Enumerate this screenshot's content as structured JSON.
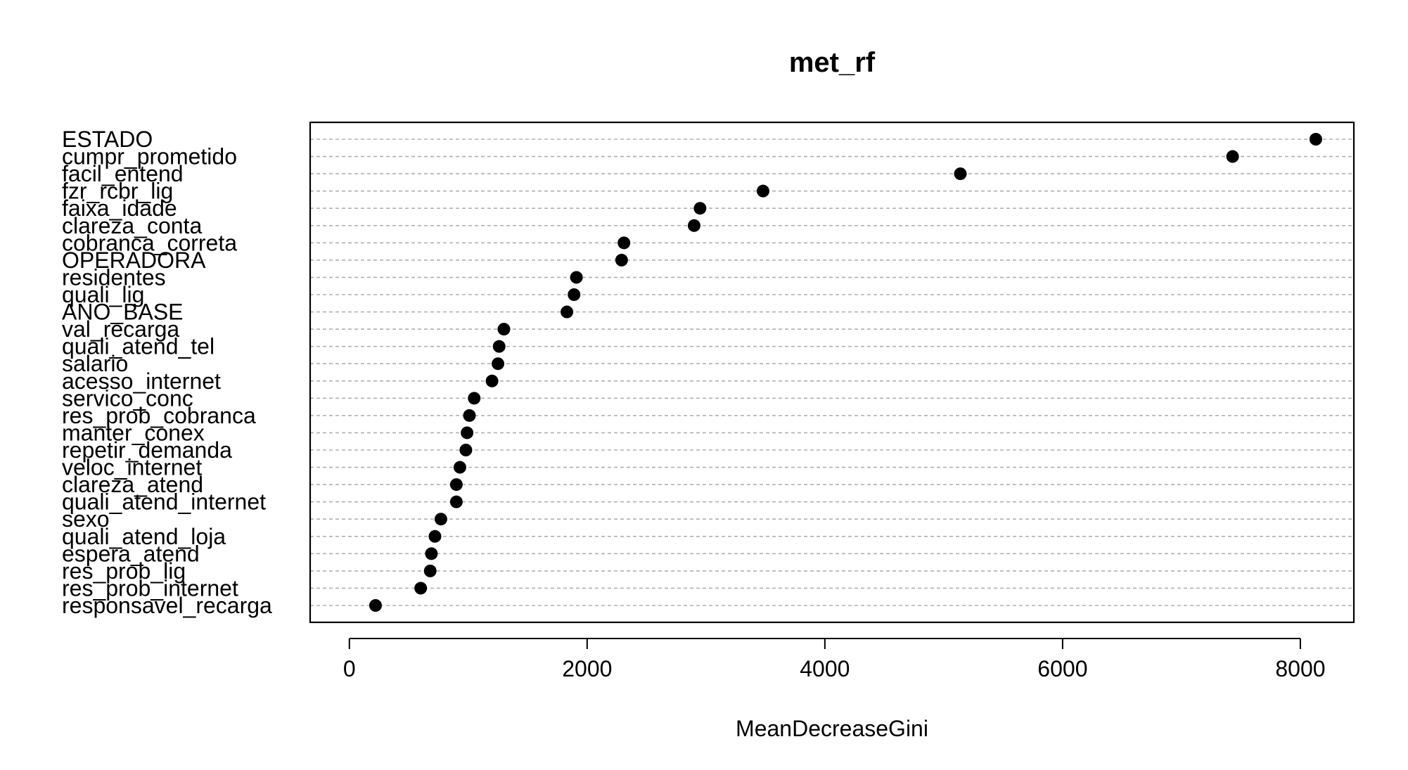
{
  "chart_data": {
    "type": "scatter",
    "title": "met_rf",
    "xlabel": "MeanDecreaseGini",
    "ylabel": "",
    "xlim": [
      -330,
      8450
    ],
    "xticks": [
      0,
      2000,
      4000,
      6000,
      8000
    ],
    "xtick_labels": [
      "0",
      "2000",
      "4000",
      "6000",
      "8000"
    ],
    "grid": "horizontal-dashed",
    "legend": "none",
    "point_color": "#000000",
    "gridline_color": "#b0b0b0",
    "categories": [
      "ESTADO",
      "cumpr_prometido",
      "facil_entend",
      "fzr_rcbr_lig",
      "faixa_idade",
      "clareza_conta",
      "cobranca_correta",
      "OPERADORA",
      "residentes",
      "quali_lig",
      "ANO_BASE",
      "val_recarga",
      "quali_atend_tel",
      "salario",
      "acesso_internet",
      "servico_conc",
      "res_prob_cobranca",
      "manter_conex",
      "repetir_demanda",
      "veloc_internet",
      "clareza_atend",
      "quali_atend_internet",
      "sexo",
      "quali_atend_loja",
      "espera_atend",
      "res_prob_lig",
      "res_prob_internet",
      "responsavel_recarga"
    ],
    "values": [
      8130,
      7430,
      5140,
      3480,
      2950,
      2900,
      2310,
      2290,
      1910,
      1890,
      1830,
      1300,
      1260,
      1250,
      1200,
      1050,
      1010,
      990,
      980,
      930,
      900,
      900,
      770,
      720,
      690,
      680,
      600,
      220
    ]
  }
}
